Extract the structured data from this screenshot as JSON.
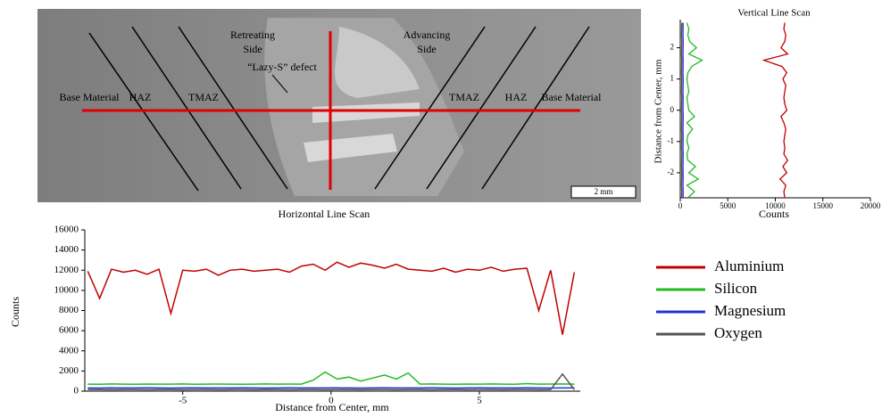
{
  "micrograph": {
    "retreating_side": [
      "Retreating",
      "Side"
    ],
    "advancing_side": [
      "Advancing",
      "Side"
    ],
    "defect": "“Lazy-S” defect",
    "zones": [
      "Base Material",
      "HAZ",
      "TMAZ",
      "TMAZ",
      "HAZ",
      "Base Material"
    ],
    "scale_bar": "2 mm"
  },
  "chart_data": [
    {
      "type": "line",
      "title": "Horizontal Line Scan",
      "x_label": "Distance from Center, mm",
      "y_label": "Counts",
      "xlim": [
        -8.3,
        8.4
      ],
      "xticks": [
        -5,
        0,
        5
      ],
      "ylim": [
        0,
        16000
      ],
      "yticks": [
        0,
        2000,
        4000,
        6000,
        8000,
        10000,
        12000,
        14000,
        16000
      ],
      "x": [
        -8.2,
        -7.8,
        -7.4,
        -7.0,
        -6.6,
        -6.2,
        -5.8,
        -5.4,
        -5.0,
        -4.6,
        -4.2,
        -3.8,
        -3.4,
        -3.0,
        -2.6,
        -2.2,
        -1.8,
        -1.4,
        -1.0,
        -0.6,
        -0.2,
        0.2,
        0.6,
        1.0,
        1.4,
        1.8,
        2.2,
        2.6,
        3.0,
        3.4,
        3.8,
        4.2,
        4.6,
        5.0,
        5.4,
        5.8,
        6.2,
        6.6,
        7.0,
        7.4,
        7.8,
        8.2
      ],
      "series": [
        {
          "name": "Aluminium",
          "color": "#c00000",
          "values": [
            11900,
            9200,
            12100,
            11800,
            12000,
            11600,
            12100,
            7700,
            12000,
            11900,
            12100,
            11500,
            12000,
            12100,
            11900,
            12000,
            12100,
            11800,
            12400,
            12600,
            12000,
            12800,
            12300,
            12700,
            12500,
            12200,
            12600,
            12100,
            12000,
            11900,
            12200,
            11800,
            12100,
            12000,
            12300,
            11900,
            12100,
            12200,
            8000,
            12000,
            5600,
            11800
          ]
        },
        {
          "name": "Silicon",
          "color": "#22bb22",
          "values": [
            700,
            680,
            720,
            700,
            690,
            710,
            700,
            700,
            720,
            690,
            700,
            710,
            700,
            690,
            700,
            720,
            700,
            710,
            700,
            1100,
            1900,
            1200,
            1400,
            1000,
            1300,
            1600,
            1200,
            1800,
            700,
            720,
            700,
            690,
            710,
            700,
            720,
            700,
            690,
            750,
            700,
            710,
            720,
            700
          ]
        },
        {
          "name": "Magnesium",
          "color": "#2233cc",
          "values": [
            320,
            310,
            330,
            320,
            315,
            325,
            320,
            310,
            320,
            330,
            320,
            315,
            320,
            325,
            320,
            310,
            320,
            330,
            320,
            315,
            320,
            325,
            320,
            310,
            320,
            330,
            320,
            315,
            320,
            325,
            320,
            310,
            320,
            330,
            320,
            315,
            320,
            325,
            320,
            310,
            320,
            330
          ]
        },
        {
          "name": "Oxygen",
          "color": "#555555",
          "values": [
            150,
            160,
            140,
            150,
            155,
            145,
            150,
            160,
            140,
            150,
            155,
            145,
            150,
            160,
            140,
            150,
            155,
            145,
            150,
            160,
            140,
            150,
            155,
            145,
            150,
            160,
            140,
            150,
            155,
            145,
            150,
            160,
            140,
            150,
            155,
            145,
            150,
            160,
            140,
            150,
            1700,
            150
          ]
        }
      ]
    },
    {
      "type": "line",
      "orientation": "vertical",
      "title": "Vertical Line Scan",
      "x_label": "Counts",
      "y_label": "Distance from Center, mm",
      "xlim": [
        0,
        20000
      ],
      "xticks": [
        0,
        5000,
        10000,
        15000,
        20000
      ],
      "ylim": [
        -2.8,
        2.9
      ],
      "yticks": [
        -2,
        -1,
        0,
        1,
        2
      ],
      "y": [
        -2.8,
        -2.6,
        -2.4,
        -2.2,
        -2.0,
        -1.8,
        -1.6,
        -1.4,
        -1.2,
        -1.0,
        -0.8,
        -0.6,
        -0.4,
        -0.2,
        0.0,
        0.2,
        0.4,
        0.6,
        0.8,
        1.0,
        1.2,
        1.4,
        1.6,
        1.8,
        2.0,
        2.2,
        2.4,
        2.6,
        2.8
      ],
      "series": [
        {
          "color": "#c00000",
          "values": [
            11000,
            10900,
            11100,
            10500,
            11200,
            10800,
            11300,
            10900,
            11000,
            10900,
            11000,
            11100,
            10900,
            10600,
            11200,
            11000,
            10900,
            11000,
            11100,
            10800,
            11200,
            10700,
            8800,
            11300,
            10600,
            11000,
            11100,
            10900,
            11000
          ]
        },
        {
          "color": "#22bb22",
          "values": [
            800,
            1500,
            700,
            1900,
            900,
            1600,
            800,
            700,
            900,
            700,
            800,
            1300,
            700,
            1500,
            900,
            800,
            700,
            900,
            800,
            700,
            800,
            1200,
            2300,
            900,
            1700,
            1000,
            800,
            900,
            700
          ]
        },
        {
          "color": "#2233cc",
          "values": [
            300,
            310,
            290,
            300,
            305,
            295,
            300,
            310,
            290,
            300,
            305,
            295,
            300,
            310,
            290,
            300,
            305,
            295,
            300,
            310,
            290,
            300,
            305,
            295,
            300,
            310,
            290,
            300,
            305
          ]
        },
        {
          "color": "#555555",
          "values": [
            150,
            160,
            140,
            150,
            155,
            145,
            150,
            160,
            140,
            150,
            155,
            145,
            150,
            160,
            140,
            150,
            155,
            145,
            150,
            160,
            140,
            150,
            155,
            145,
            150,
            160,
            140,
            150,
            155
          ]
        }
      ]
    }
  ]
}
